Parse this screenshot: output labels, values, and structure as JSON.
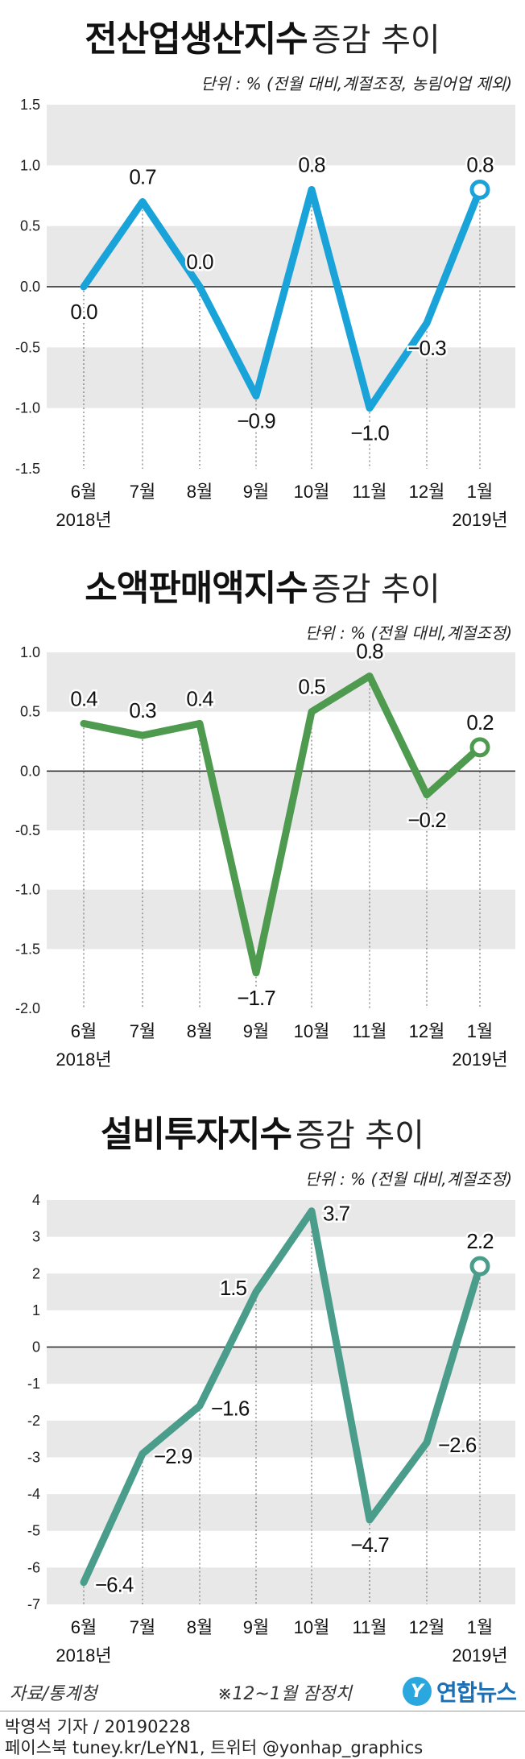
{
  "chart_data": [
    {
      "type": "line",
      "title": "전산업생산지수",
      "subtitle": "증감 추이",
      "unit_note": "단위 : % (전월 대비,계절조정, 농림어업 제외)",
      "categories": [
        "6월",
        "7월",
        "8월",
        "9월",
        "10월",
        "11월",
        "12월",
        "1월"
      ],
      "year_labels": {
        "start": "2018년",
        "end": "2019년"
      },
      "values": [
        0.0,
        0.7,
        0.0,
        -0.9,
        0.8,
        -1.0,
        -0.3,
        0.8
      ],
      "value_labels": [
        "0.0",
        "0.7",
        "0.0",
        "−0.9",
        "0.8",
        "−1.0",
        "−0.3",
        "0.8"
      ],
      "yticks": [
        1.5,
        1.0,
        0.5,
        0.0,
        -0.5,
        -1.0,
        -1.5
      ],
      "ytick_labels": [
        "1.5",
        "1.0",
        "0.5",
        "0.0",
        "-0.5",
        "-1.0",
        "-1.5"
      ],
      "ylim": [
        -1.5,
        1.5
      ],
      "color": "#1aa3d8",
      "label_pos": [
        "below",
        "above",
        "above",
        "below",
        "above",
        "below",
        "below",
        "above"
      ]
    },
    {
      "type": "line",
      "title": "소액판매액지수",
      "subtitle": "증감 추이",
      "unit_note": "단위 : % (전월 대비,계절조정)",
      "categories": [
        "6월",
        "7월",
        "8월",
        "9월",
        "10월",
        "11월",
        "12월",
        "1월"
      ],
      "year_labels": {
        "start": "2018년",
        "end": "2019년"
      },
      "values": [
        0.4,
        0.3,
        0.4,
        -1.7,
        0.5,
        0.8,
        -0.2,
        0.2
      ],
      "value_labels": [
        "0.4",
        "0.3",
        "0.4",
        "−1.7",
        "0.5",
        "0.8",
        "−0.2",
        "0.2"
      ],
      "yticks": [
        1.0,
        0.5,
        0.0,
        -0.5,
        -1.0,
        -1.5,
        -2.0
      ],
      "ytick_labels": [
        "1.0",
        "0.5",
        "0.0",
        "-0.5",
        "-1.0",
        "-1.5",
        "-2.0"
      ],
      "ylim": [
        -2.0,
        1.0
      ],
      "color": "#4e9a4e",
      "label_pos": [
        "above",
        "above",
        "above",
        "below",
        "above",
        "above",
        "below",
        "above"
      ]
    },
    {
      "type": "line",
      "title": "설비투자지수",
      "subtitle": "증감 추이",
      "unit_note": "단위 : % (전월 대비,계절조정)",
      "categories": [
        "6월",
        "7월",
        "8월",
        "9월",
        "10월",
        "11월",
        "12월",
        "1월"
      ],
      "year_labels": {
        "start": "2018년",
        "end": "2019년"
      },
      "values": [
        -6.4,
        -2.9,
        -1.6,
        1.5,
        3.7,
        -4.7,
        -2.6,
        2.2
      ],
      "value_labels": [
        "−6.4",
        "−2.9",
        "−1.6",
        "1.5",
        "3.7",
        "−4.7",
        "−2.6",
        "2.2"
      ],
      "yticks": [
        4,
        3,
        2,
        1,
        0,
        -1,
        -2,
        -3,
        -4,
        -5,
        -6,
        -7
      ],
      "ytick_labels": [
        "4",
        "3",
        "2",
        "1",
        "0",
        "-1",
        "-2",
        "-3",
        "-4",
        "-5",
        "-6",
        "-7"
      ],
      "ylim": [
        -7,
        4
      ],
      "color": "#4a9d8a",
      "label_pos": [
        "right",
        "right",
        "right",
        "left",
        "right",
        "below",
        "right",
        "above"
      ]
    }
  ],
  "footer": {
    "source": "자료/통계청",
    "note": "※12~1월 잠정치",
    "logo_mark": "Y",
    "logo_text": "연합뉴스",
    "byline": "박영석 기자 / 20190228",
    "social": "페이스북 tuney.kr/LeYN1, 트위터 @yonhap_graphics"
  }
}
